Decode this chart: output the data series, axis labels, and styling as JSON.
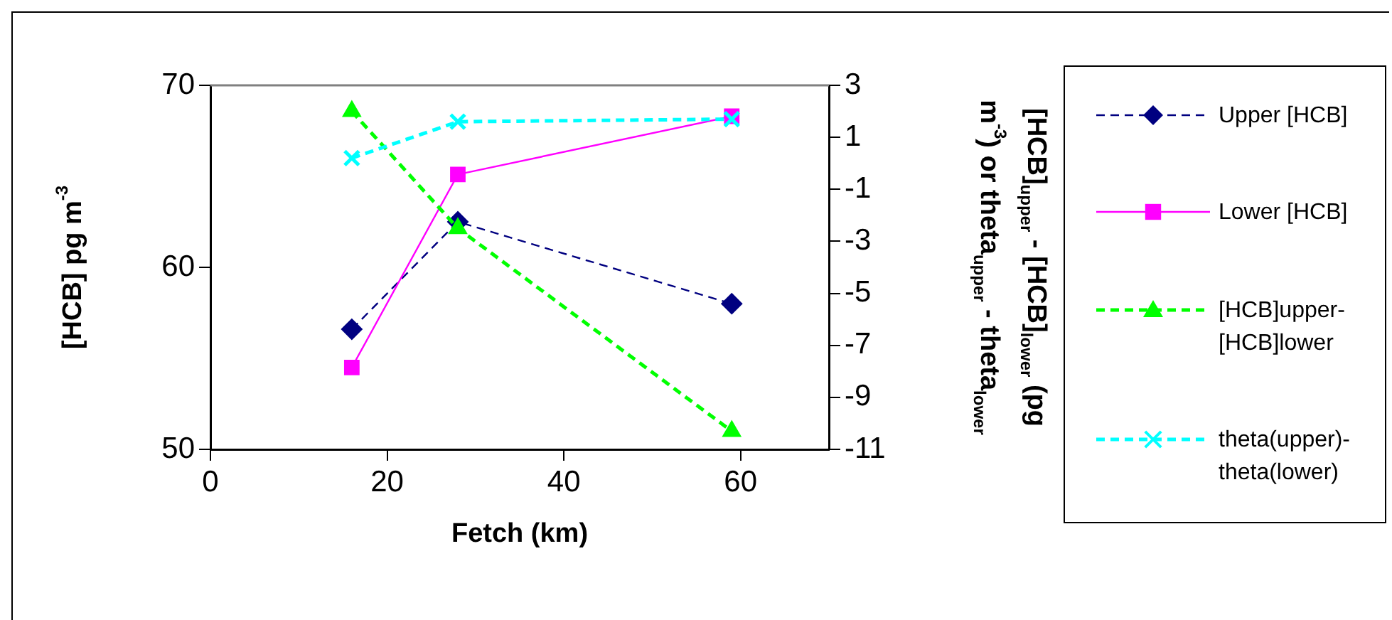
{
  "chart_data": {
    "type": "line",
    "xlabel": "Fetch (km)",
    "ylabel": "[HCB] pg m$^{-3}$",
    "y2label": "[HCB]$_{upper}$ - [HCB]$_{lower}$ (pg m$^{-3}$) or theta$_{upper}$ - theta$_{lower}$",
    "x": [
      16,
      28,
      59
    ],
    "xlim": [
      0,
      70
    ],
    "xticks": [
      0,
      20,
      40,
      60
    ],
    "ylim": [
      50,
      70
    ],
    "yticks": [
      50,
      60,
      70
    ],
    "y2lim": [
      -11,
      3
    ],
    "y2ticks": [
      -11,
      -9,
      -7,
      -5,
      -3,
      -1,
      1,
      3
    ],
    "legend": "right",
    "grid": false,
    "series": [
      {
        "name": "Upper [HCB]",
        "color": "#000080",
        "marker": "diamond",
        "line_style": "dashed",
        "values": [
          56.6,
          62.5,
          58.0
        ]
      },
      {
        "name": "Lower [HCB]",
        "color": "#ff00ff",
        "marker": "square",
        "line_style": "solid",
        "values": [
          54.5,
          65.1,
          68.3
        ]
      },
      {
        "name": "[HCB]upper-[HCB]lower",
        "color": "#00ff00",
        "marker": "triangle",
        "line_style": "dashed",
        "axis": "y2",
        "values": [
          2.0,
          -2.5,
          -10.3
        ]
      },
      {
        "name": "theta(upper)-theta(lower)",
        "color": "#00ffff",
        "marker": "cross",
        "line_style": "dashed",
        "axis": "y2",
        "values": [
          0.2,
          1.6,
          1.7
        ]
      }
    ]
  }
}
